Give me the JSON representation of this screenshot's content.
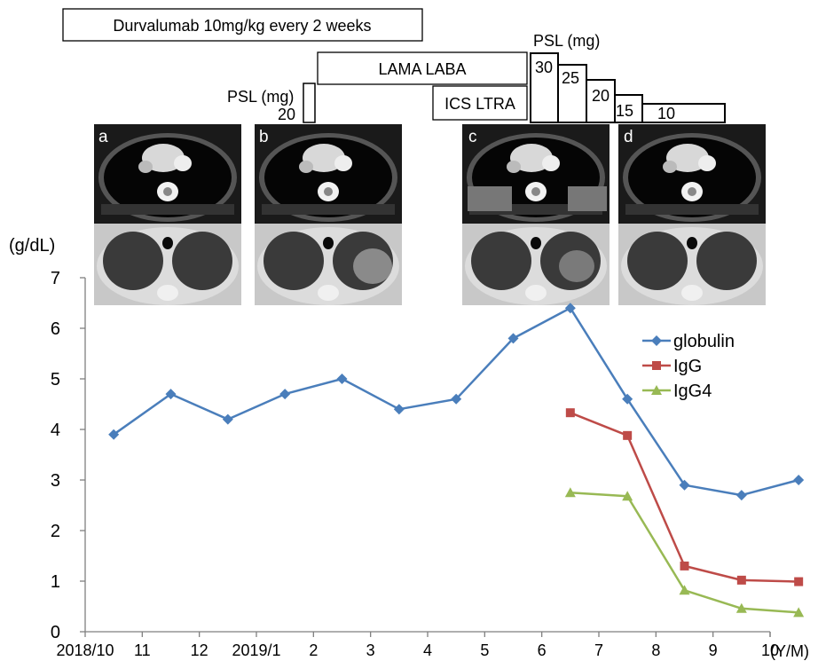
{
  "treatments": {
    "durvalumab": "Durvalumab 10mg/kg every 2 weeks",
    "lama_laba": "LAMA LABA",
    "ics_ltra": "ICS LTRA",
    "psl_label_1": "PSL (mg)",
    "psl_dose_1": "20",
    "psl_label_2": "PSL (mg)",
    "psl_taper": [
      "30",
      "25",
      "20",
      "15",
      "10"
    ]
  },
  "ct_panels": [
    {
      "letter": "a",
      "image": "chest-ct-a"
    },
    {
      "letter": "b",
      "image": "chest-ct-b"
    },
    {
      "letter": "c",
      "image": "chest-ct-c"
    },
    {
      "letter": "d",
      "image": "chest-ct-d"
    }
  ],
  "chart_data": {
    "type": "line",
    "ylabel": "(g/dL)",
    "xlabel": "(Y/M)",
    "ylim": [
      0,
      7
    ],
    "yticks": [
      "0",
      "1",
      "2",
      "3",
      "4",
      "5",
      "6",
      "7"
    ],
    "xticks": [
      "2018/10",
      "11",
      "12",
      "2019/1",
      "2",
      "3",
      "4",
      "5",
      "6",
      "7",
      "8",
      "9",
      "10"
    ],
    "grid": false,
    "legend": "right",
    "series": [
      {
        "name": "globulin",
        "color": "#4a7ebb",
        "marker": "diamond",
        "x": [
          "2018/10",
          "2018/11",
          "2018/12",
          "2019/1",
          "2019/2",
          "2019/3",
          "2019/4",
          "2019/5",
          "2019/6",
          "2019/7",
          "2019/8",
          "2019/9",
          "2019/10"
        ],
        "values": [
          3.9,
          4.7,
          4.2,
          4.7,
          5.0,
          4.4,
          4.6,
          5.8,
          6.4,
          4.6,
          2.9,
          2.7,
          3.0
        ]
      },
      {
        "name": "IgG",
        "color": "#be4b48",
        "marker": "square",
        "x": [
          "2019/6",
          "2019/7",
          "2019/8",
          "2019/9",
          "2019/10"
        ],
        "values": [
          4.33,
          3.88,
          1.3,
          1.02,
          0.99
        ]
      },
      {
        "name": "IgG4",
        "color": "#98b954",
        "marker": "triangle",
        "x": [
          "2019/6",
          "2019/7",
          "2019/8",
          "2019/9",
          "2019/10"
        ],
        "values": [
          2.75,
          2.68,
          0.82,
          0.46,
          0.38
        ]
      }
    ]
  }
}
